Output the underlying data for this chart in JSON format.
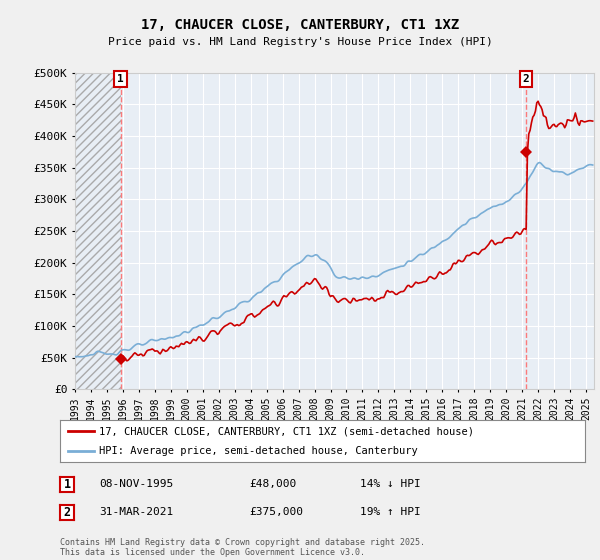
{
  "title": "17, CHAUCER CLOSE, CANTERBURY, CT1 1XZ",
  "subtitle": "Price paid vs. HM Land Registry's House Price Index (HPI)",
  "legend_line1": "17, CHAUCER CLOSE, CANTERBURY, CT1 1XZ (semi-detached house)",
  "legend_line2": "HPI: Average price, semi-detached house, Canterbury",
  "annotation1_date": "08-NOV-1995",
  "annotation1_price": "£48,000",
  "annotation1_hpi": "14% ↓ HPI",
  "annotation2_date": "31-MAR-2021",
  "annotation2_price": "£375,000",
  "annotation2_hpi": "19% ↑ HPI",
  "footer": "Contains HM Land Registry data © Crown copyright and database right 2025.\nThis data is licensed under the Open Government Licence v3.0.",
  "house_color": "#cc0000",
  "hpi_color": "#7aaed6",
  "purchase1_x": 1995.85,
  "purchase1_y": 48000,
  "purchase2_x": 2021.25,
  "purchase2_y": 375000,
  "ylim": [
    0,
    500000
  ],
  "yticks": [
    0,
    50000,
    100000,
    150000,
    200000,
    250000,
    300000,
    350000,
    400000,
    450000,
    500000
  ],
  "xlim_start": 1993.0,
  "xlim_end": 2025.5,
  "xticks": [
    1993,
    1994,
    1995,
    1996,
    1997,
    1998,
    1999,
    2000,
    2001,
    2002,
    2003,
    2004,
    2005,
    2006,
    2007,
    2008,
    2009,
    2010,
    2011,
    2012,
    2013,
    2014,
    2015,
    2016,
    2017,
    2018,
    2019,
    2020,
    2021,
    2022,
    2023,
    2024,
    2025
  ],
  "background_color": "#f0f0f0",
  "plot_bg_color": "#e8eef5"
}
